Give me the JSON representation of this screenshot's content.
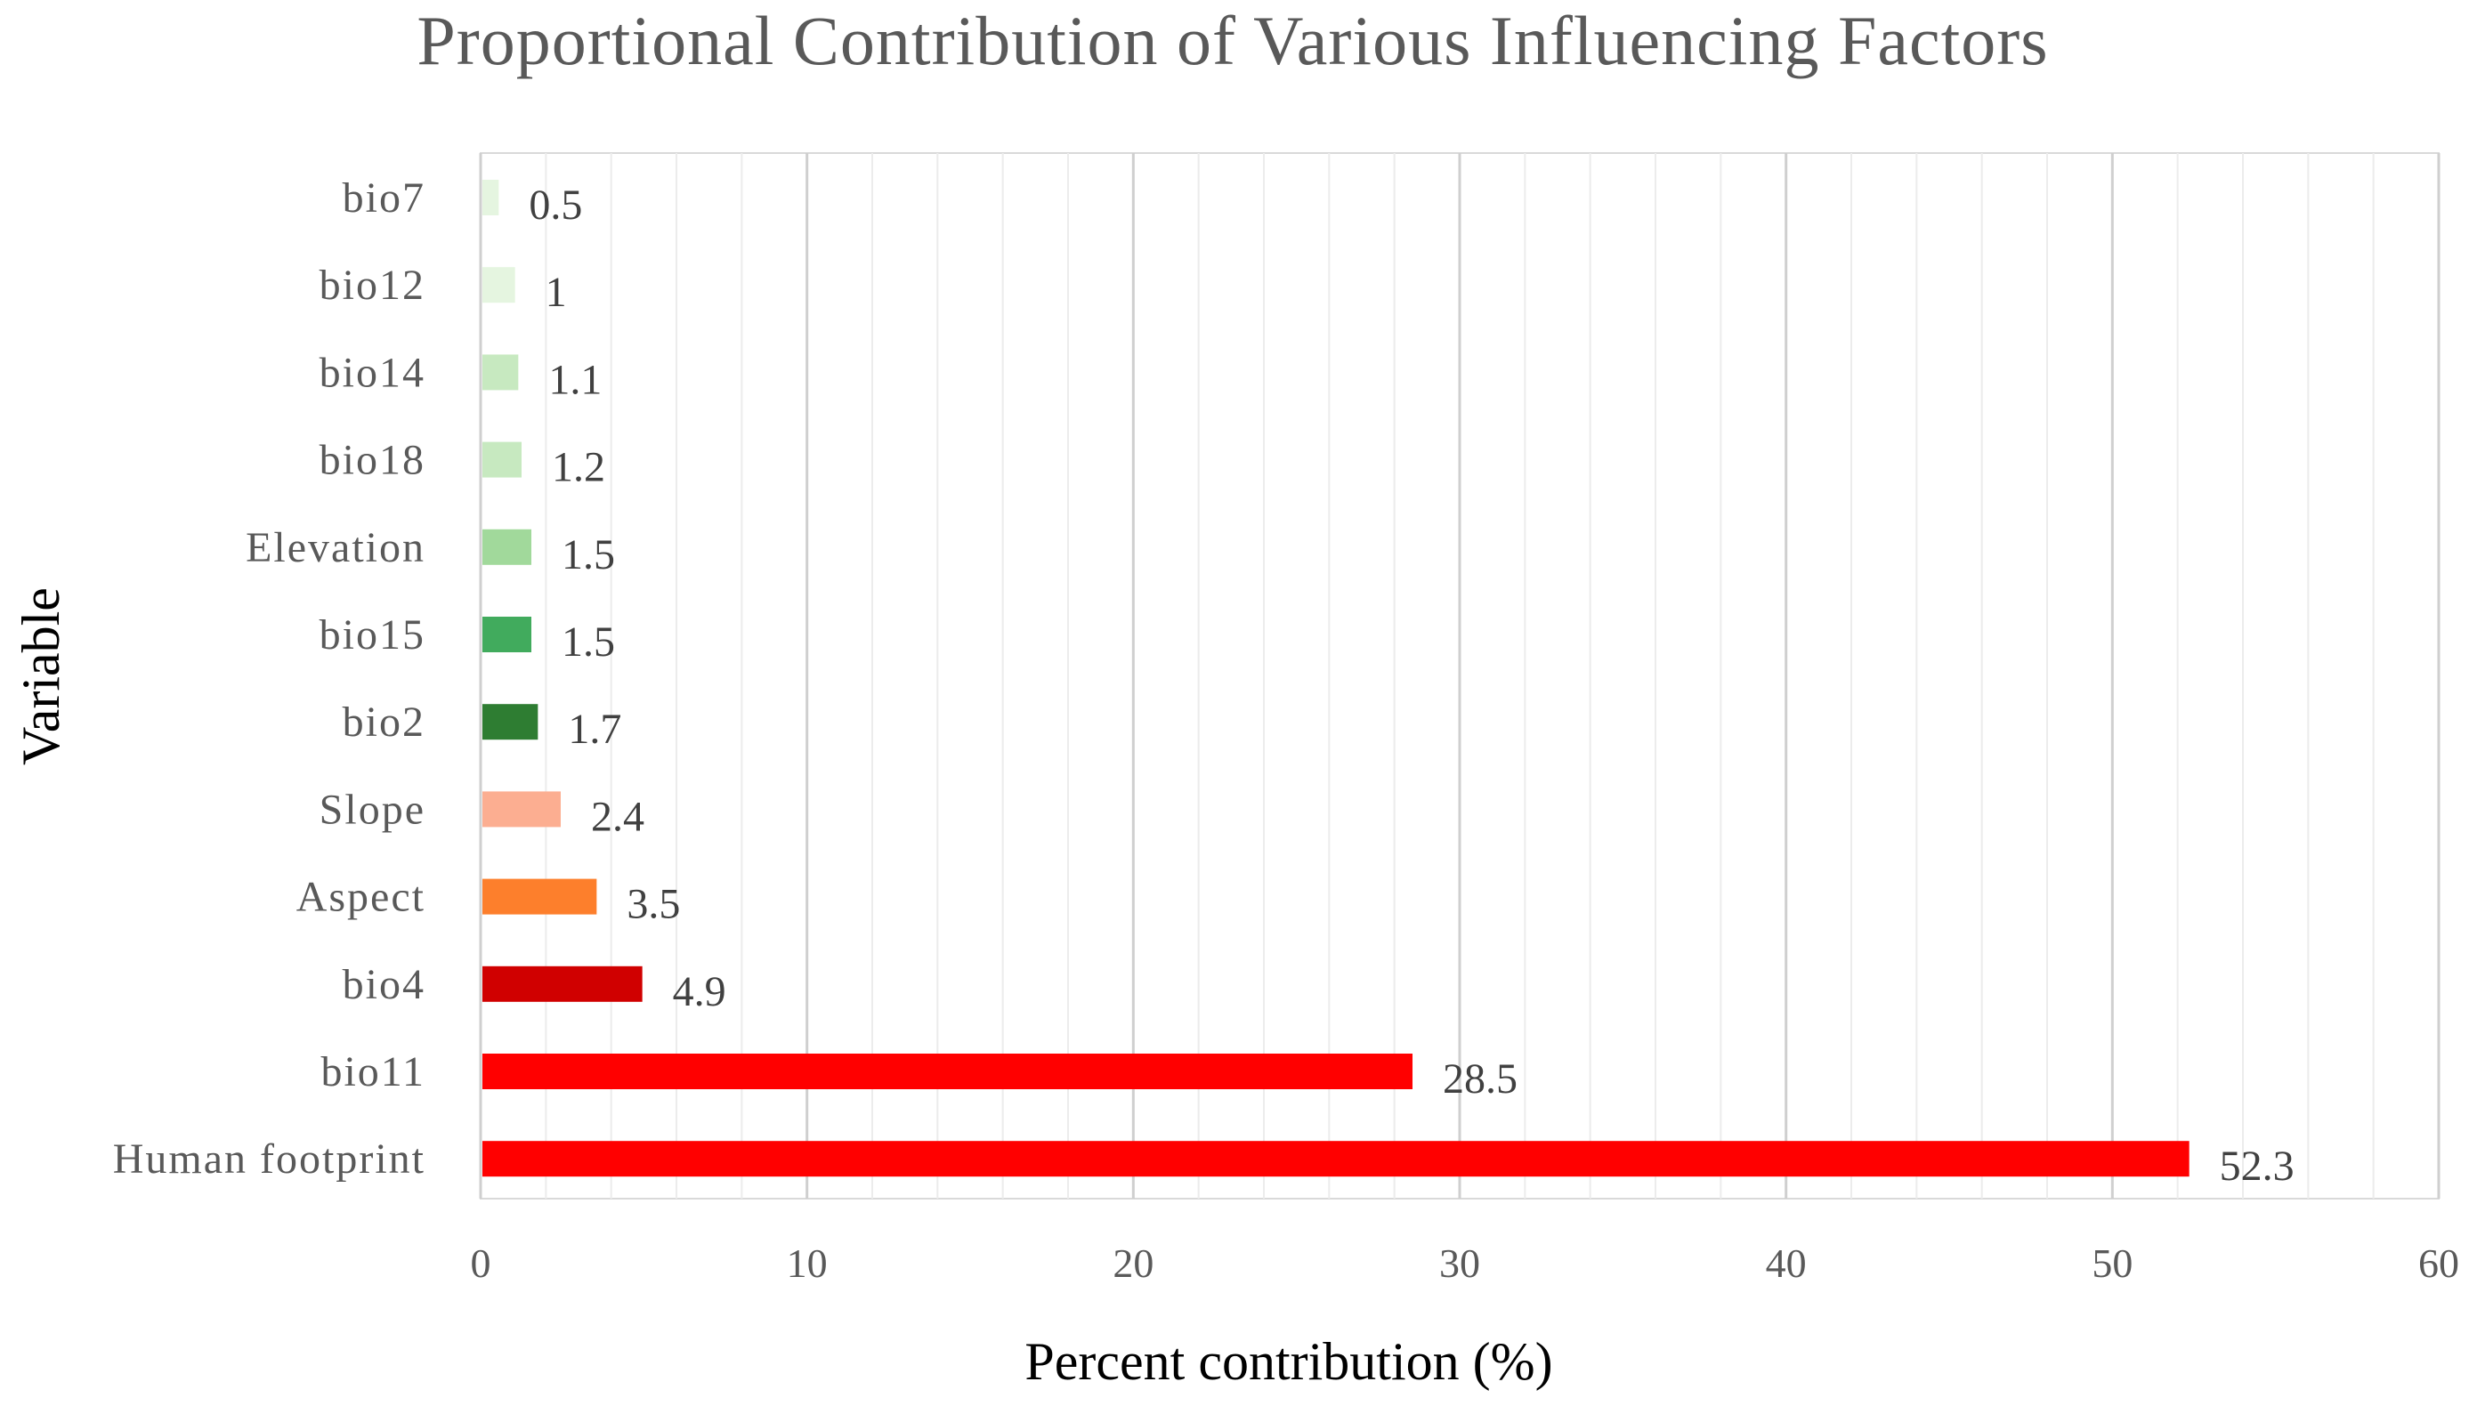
{
  "chart_data": {
    "type": "bar",
    "orientation": "horizontal",
    "title": "Proportional Contribution of Various Influencing Factors",
    "xlabel": "Percent contribution (%)",
    "ylabel": "Variable",
    "xlim": [
      0,
      60
    ],
    "x_ticks": [
      0,
      10,
      20,
      30,
      40,
      50,
      60
    ],
    "minor_step": 2,
    "grid": true,
    "legend": "none",
    "categories": [
      "bio7",
      "bio12",
      "bio14",
      "bio18",
      "Elevation",
      "bio15",
      "bio2",
      "Slope",
      "Aspect",
      "bio4",
      "bio11",
      "Human footprint"
    ],
    "values": [
      0.5,
      1,
      1.1,
      1.2,
      1.5,
      1.5,
      1.7,
      2.4,
      3.5,
      4.9,
      28.5,
      52.3
    ],
    "colors": [
      "#e5f5e0",
      "#e5f5e0",
      "#c7e9c0",
      "#c7e9c0",
      "#a1d99b",
      "#41ab5d",
      "#2e7d32",
      "#fcae91",
      "#fd7f2c",
      "#d00000",
      "#ff0000",
      "#ff0000"
    ]
  }
}
